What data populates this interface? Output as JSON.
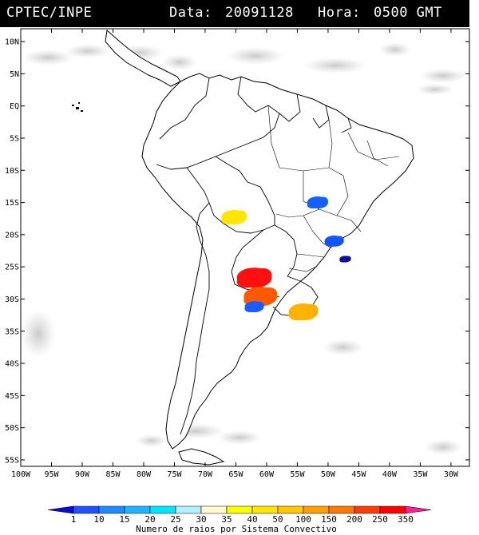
{
  "header": {
    "source": "CPTEC/INPE",
    "date_label": "Data:",
    "date_value": "20091128",
    "hour_label": "Hora:",
    "hour_value": "0500 GMT"
  },
  "map": {
    "lat_labels": [
      "10N",
      "5N",
      "EQ",
      "5S",
      "10S",
      "15S",
      "20S",
      "25S",
      "30S",
      "35S",
      "40S",
      "45S",
      "50S",
      "55S"
    ],
    "lon_labels": [
      "100W",
      "95W",
      "90W",
      "85W",
      "80W",
      "75W",
      "70W",
      "65W",
      "60W",
      "55W",
      "50W",
      "45W",
      "40W",
      "35W",
      "30W"
    ],
    "lat_ticks": [
      10,
      5,
      0,
      -5,
      -10,
      -15,
      -20,
      -25,
      -30,
      -35,
      -40,
      -45,
      -50,
      -55
    ],
    "lon_ticks": [
      -100,
      -95,
      -90,
      -85,
      -80,
      -75,
      -70,
      -65,
      -60,
      -55,
      -50,
      -45,
      -40,
      -35,
      -30
    ],
    "extent": {
      "lon_min": -100,
      "lon_max": -27,
      "lat_min": -56,
      "lat_max": 12
    }
  },
  "convective_systems": [
    {
      "lon": -65.3,
      "lat": -17.3,
      "value": 40,
      "color": "#ffe600"
    },
    {
      "lon": -51.7,
      "lat": -15.0,
      "value": 15,
      "color": "#1460ff"
    },
    {
      "lon": -49.0,
      "lat": -21.0,
      "value": 10,
      "color": "#1255ff"
    },
    {
      "lon": -47.2,
      "lat": -23.8,
      "value": 1,
      "color": "#1010a0"
    },
    {
      "lon": -62.0,
      "lat": -26.7,
      "value": 350,
      "color": "#ff1010"
    },
    {
      "lon": -61.0,
      "lat": -29.6,
      "value": 250,
      "color": "#ff5a00"
    },
    {
      "lon": -62.0,
      "lat": -31.2,
      "value": 10,
      "color": "#1a5cff"
    },
    {
      "lon": -54.0,
      "lat": -32.0,
      "value": 100,
      "color": "#ffb300"
    }
  ],
  "colorbar": {
    "labels": [
      "1",
      "10",
      "15",
      "20",
      "25",
      "30",
      "35",
      "40",
      "50",
      "100",
      "150",
      "200",
      "250",
      "350"
    ],
    "colors": [
      "#0a0adc",
      "#1e52ff",
      "#1e8cff",
      "#1eb4ff",
      "#00e6ff",
      "#b4f0ff",
      "#fffad2",
      "#ffff00",
      "#ffe600",
      "#ffc800",
      "#ffa000",
      "#ff7800",
      "#ff3c00",
      "#ff0000",
      "#ff1e96"
    ],
    "title": "Numero de raios por Sistema Convectivo"
  }
}
